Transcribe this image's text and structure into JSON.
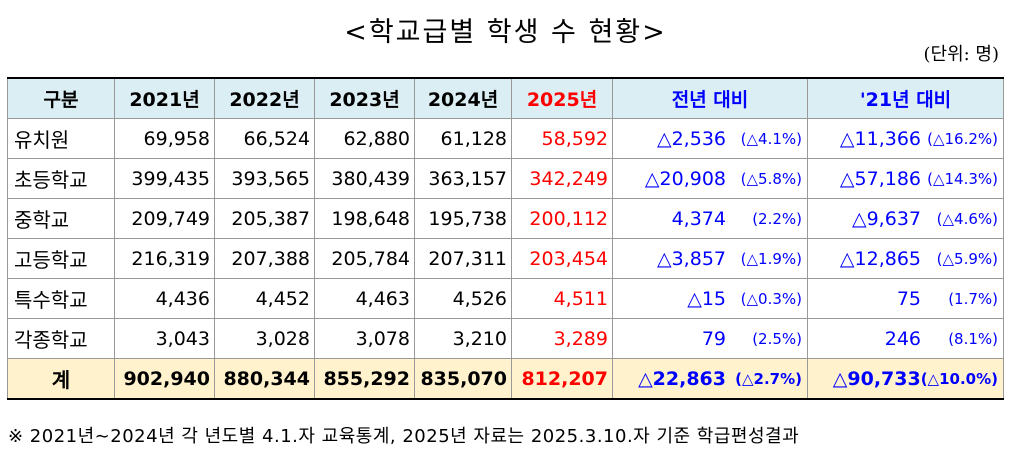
{
  "title": "<학교급별 학생 수 현황>",
  "unit": "(단위: 명)",
  "columns": [
    "구분",
    "2021년",
    "2022년",
    "2023년",
    "2024년",
    "2025년",
    "전년 대비",
    "'21년 대비"
  ],
  "rows": [
    {
      "name": "유치원",
      "y2021": "69,958",
      "y2022": "66,524",
      "y2023": "62,880",
      "y2024": "61,128",
      "y2025": "58,592",
      "prev_v": "△2,536",
      "prev_p": "(△4.1%)",
      "base_v": "△11,366",
      "base_p": "(△16.2%)"
    },
    {
      "name": "초등학교",
      "y2021": "399,435",
      "y2022": "393,565",
      "y2023": "380,439",
      "y2024": "363,157",
      "y2025": "342,249",
      "prev_v": "△20,908",
      "prev_p": "(△5.8%)",
      "base_v": "△57,186",
      "base_p": "(△14.3%)"
    },
    {
      "name": "중학교",
      "y2021": "209,749",
      "y2022": "205,387",
      "y2023": "198,648",
      "y2024": "195,738",
      "y2025": "200,112",
      "prev_v": "4,374",
      "prev_p": "(2.2%)",
      "base_v": "△9,637",
      "base_p": "(△4.6%)"
    },
    {
      "name": "고등학교",
      "y2021": "216,319",
      "y2022": "207,388",
      "y2023": "205,784",
      "y2024": "207,311",
      "y2025": "203,454",
      "prev_v": "△3,857",
      "prev_p": "(△1.9%)",
      "base_v": "△12,865",
      "base_p": "(△5.9%)"
    },
    {
      "name": "특수학교",
      "y2021": "4,436",
      "y2022": "4,452",
      "y2023": "4,463",
      "y2024": "4,526",
      "y2025": "4,511",
      "prev_v": "△15",
      "prev_p": "(△0.3%)",
      "base_v": "75",
      "base_p": "(1.7%)"
    },
    {
      "name": "각종학교",
      "y2021": "3,043",
      "y2022": "3,028",
      "y2023": "3,078",
      "y2024": "3,210",
      "y2025": "3,289",
      "prev_v": "79",
      "prev_p": "(2.5%)",
      "base_v": "246",
      "base_p": "(8.1%)"
    }
  ],
  "total": {
    "name": "계",
    "y2021": "902,940",
    "y2022": "880,344",
    "y2023": "855,292",
    "y2024": "835,070",
    "y2025": "812,207",
    "prev_v": "△22,863",
    "prev_p": "(△2.7%)",
    "base_v": "△90,733",
    "base_p": "(△10.0%)"
  },
  "note": "※ 2021년∼2024년 각 년도별 4.1.자 교육통계, 2025년 자료는 2025.3.10.자 기준 학급편성결과",
  "colors": {
    "header_bg": "#dbeef4",
    "total_bg": "#fff2cc",
    "highlight": "#ff0000",
    "compare": "#0000ff"
  }
}
